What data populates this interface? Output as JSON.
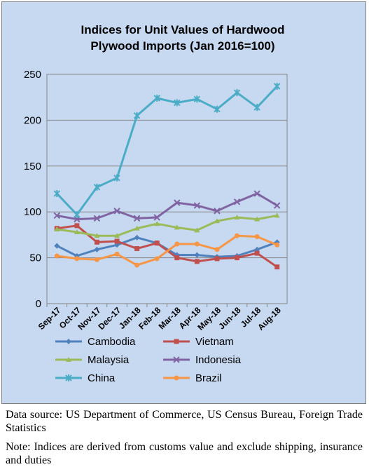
{
  "chart_data": {
    "type": "line",
    "title_lines": [
      "Indices for Unit Values of Hardwood",
      "Plywood Imports (Jan 2016=100)"
    ],
    "xlabel": "",
    "ylabel": "",
    "ylim": [
      0,
      250
    ],
    "yticks": [
      0,
      50,
      100,
      150,
      200,
      250
    ],
    "grid": true,
    "legend_position": "bottom",
    "categories": [
      "Sep-17",
      "Oct-17",
      "Nov-17",
      "Dec-17",
      "Jan-18",
      "Feb-18",
      "Mar-18",
      "Apr-18",
      "May-18",
      "Jun-18",
      "Jul-18",
      "Aug-18"
    ],
    "series": [
      {
        "name": "Cambodia",
        "color": "#4f81bd",
        "marker": "diamond",
        "values": [
          63,
          52,
          59,
          64,
          72,
          66,
          53,
          53,
          51,
          52,
          59,
          67
        ]
      },
      {
        "name": "Vietnam",
        "color": "#c0504d",
        "marker": "square",
        "values": [
          82,
          85,
          67,
          68,
          60,
          66,
          50,
          46,
          49,
          50,
          55,
          40
        ]
      },
      {
        "name": "Malaysia",
        "color": "#9bbb59",
        "marker": "triangle",
        "values": [
          81,
          78,
          74,
          74,
          82,
          87,
          83,
          80,
          90,
          94,
          92,
          96
        ]
      },
      {
        "name": "Indonesia",
        "color": "#8064a2",
        "marker": "x",
        "values": [
          96,
          92,
          93,
          101,
          93,
          94,
          110,
          107,
          101,
          111,
          120,
          107
        ]
      },
      {
        "name": "China",
        "color": "#4bacc6",
        "marker": "star",
        "values": [
          120,
          97,
          127,
          137,
          205,
          224,
          219,
          223,
          212,
          230,
          214,
          237
        ]
      },
      {
        "name": "Brazil",
        "color": "#f79646",
        "marker": "circle",
        "values": [
          52,
          49,
          48,
          54,
          42,
          49,
          65,
          65,
          59,
          74,
          73,
          64
        ]
      }
    ]
  },
  "caption": {
    "source": "Data source: US Department of Commerce, US Census Bureau, Foreign Trade Statistics",
    "note": "Note: Indices are derived from customs value and exclude shipping, insurance and duties"
  }
}
